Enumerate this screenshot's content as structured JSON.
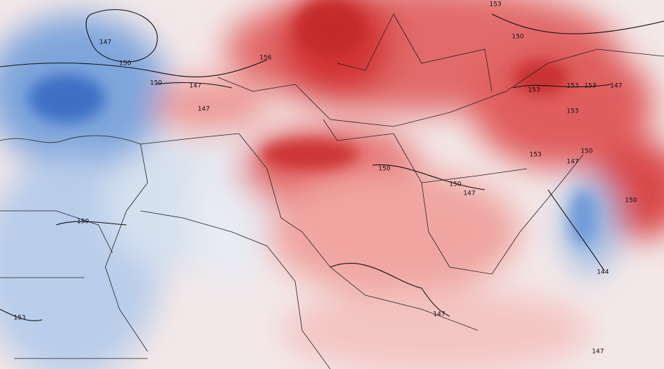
{
  "map": {
    "contour_labels": [
      "147",
      "150",
      "150",
      "147",
      "147",
      "156",
      "153",
      "150",
      "153",
      "153",
      "153",
      "147",
      "153",
      "153",
      "150",
      "147",
      "150",
      "150",
      "147",
      "150",
      "153",
      "144",
      "147",
      "147",
      "150"
    ]
  }
}
